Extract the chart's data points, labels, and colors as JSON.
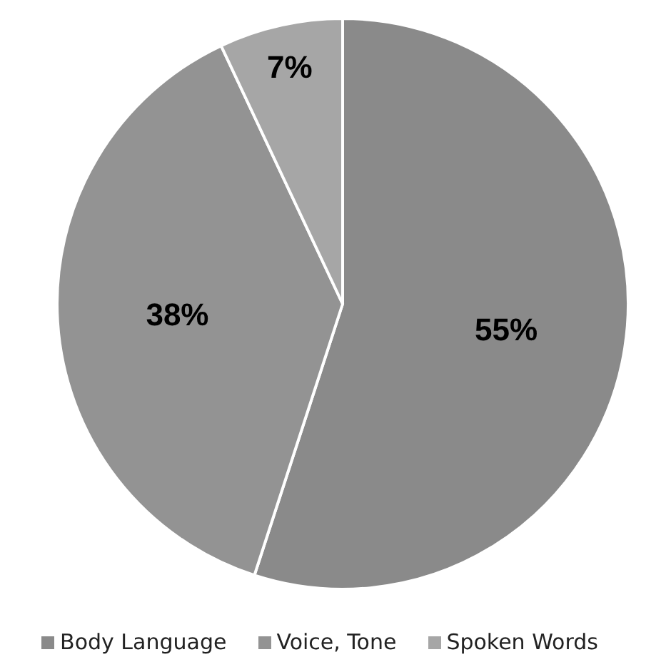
{
  "chart_data": {
    "type": "pie",
    "categories": [
      "Body Language",
      "Voice, Tone",
      "Spoken Words"
    ],
    "values": [
      55,
      38,
      7
    ],
    "colors": [
      "#8a8a8a",
      "#939393",
      "#a6a6a6"
    ],
    "value_labels": [
      "55%",
      "38%",
      "7%"
    ],
    "legend": "bottom"
  }
}
